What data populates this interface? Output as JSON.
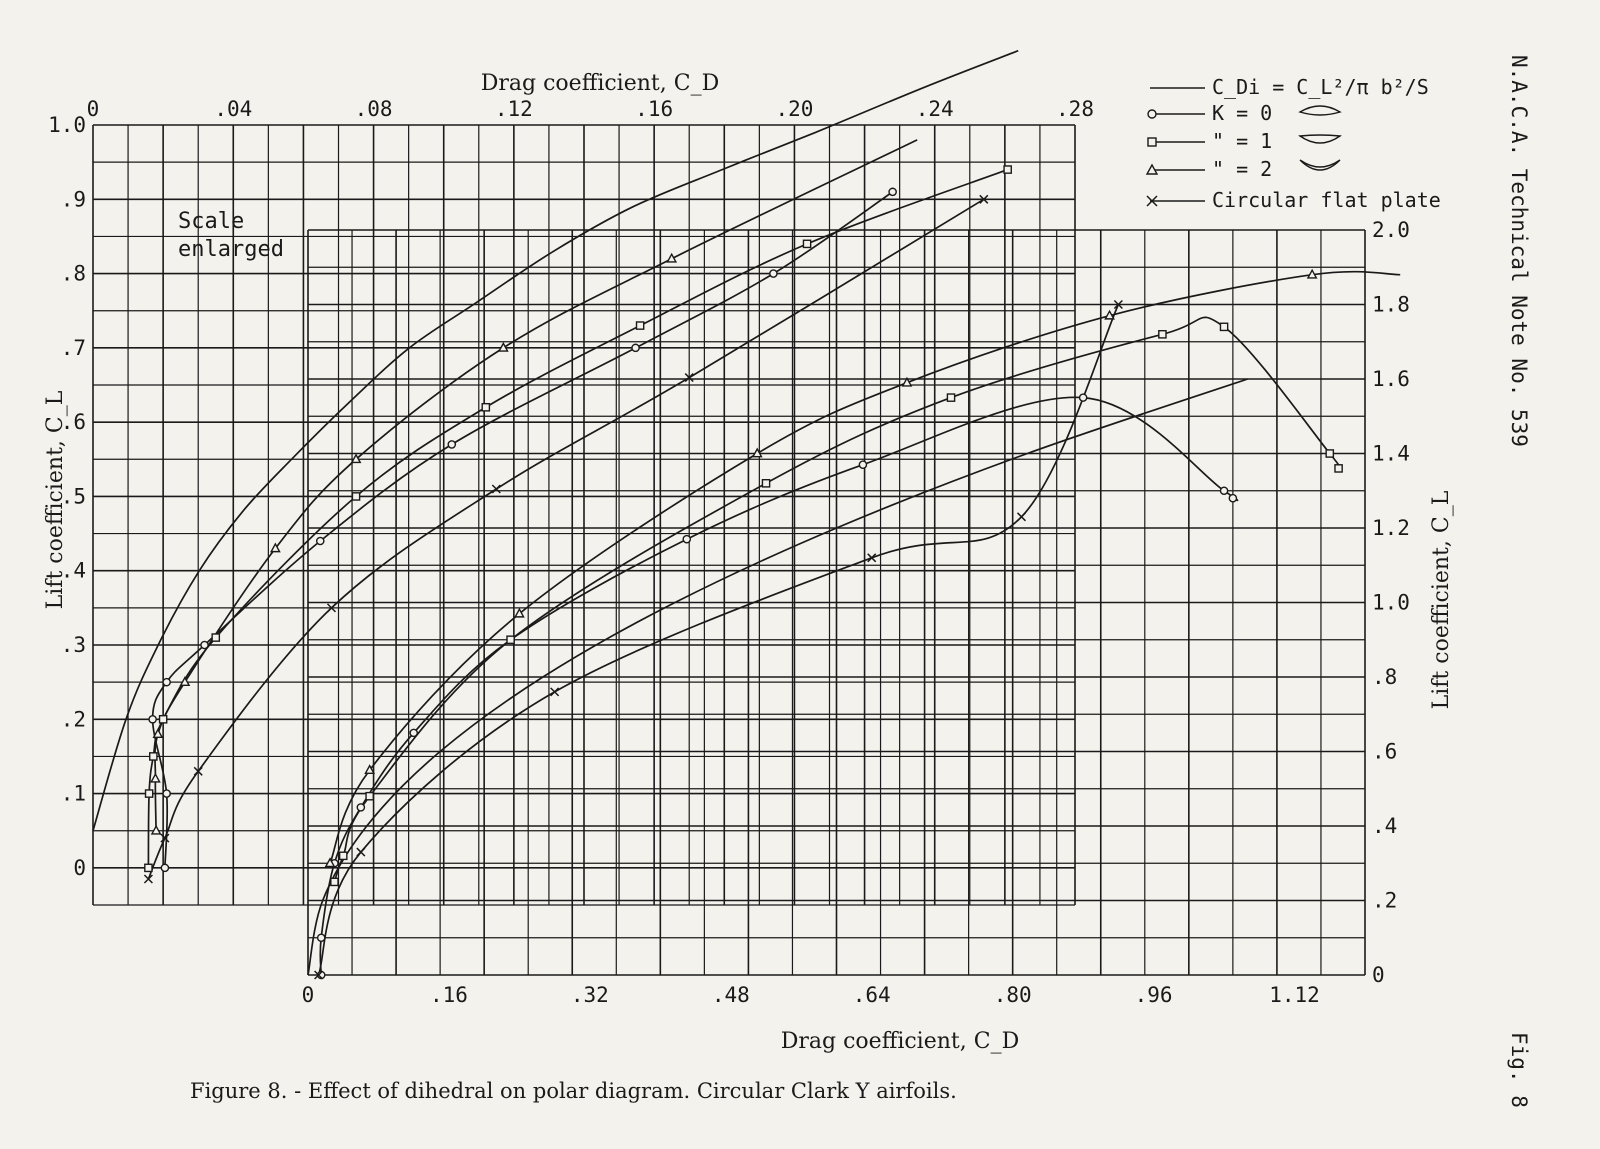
{
  "side_note": "N.A.C.A. Technical Note No. 539",
  "fig_label": "Fig. 8",
  "caption": "Figure 8. - Effect of dihedral on polar diagram.     Circular Clark Y airfoils.",
  "scale_note_line1": "Scale",
  "scale_note_line2": "enlarged",
  "legend": {
    "induced": "C_Di = C_L²/π b²/S",
    "k0": "K = 0",
    "k1": "\" = 1",
    "k2": "\" = 2",
    "flat": "Circular flat plate"
  },
  "colors": {
    "paper": "#f4f2ec",
    "ink": "#1a1a1a"
  },
  "chart_data": [
    {
      "id": "enlarged",
      "type": "line",
      "xlabel": "Drag coefficient, C_D",
      "ylabel": "Lift coefficient, C_L",
      "x_ticks": [
        "0",
        ".04",
        ".08",
        ".12",
        ".16",
        ".20",
        ".24",
        ".28"
      ],
      "y_ticks": [
        "0",
        ".1",
        ".2",
        ".3",
        ".4",
        ".5",
        ".6",
        ".7",
        ".8",
        ".9",
        "1.0"
      ],
      "xlim": [
        0,
        0.28
      ],
      "ylim": [
        -0.05,
        1.0
      ],
      "grid": true,
      "series": [
        {
          "name": "C_Di = C_L²/π b²/S",
          "marker": "none",
          "x": [
            0.0,
            0.0094,
            0.0186,
            0.0303,
            0.0427,
            0.0566,
            0.0738,
            0.0902,
            0.109,
            0.1313,
            0.154,
            0.1794,
            0.206,
            0.2366,
            0.2638
          ],
          "y": [
            0.05,
            0.2,
            0.3,
            0.4,
            0.48,
            0.55,
            0.63,
            0.7,
            0.76,
            0.83,
            0.89,
            0.94,
            0.99,
            1.05,
            1.1
          ]
        },
        {
          "name": "K = 0",
          "marker": "circle",
          "x": [
            0.0205,
            0.021,
            0.017,
            0.021,
            0.0318,
            0.0648,
            0.1023,
            0.1547,
            0.194,
            0.228
          ],
          "y": [
            0.0,
            0.1,
            0.2,
            0.25,
            0.3,
            0.44,
            0.57,
            0.7,
            0.8,
            0.91
          ]
        },
        {
          "name": "K = 1",
          "marker": "square",
          "x": [
            0.0158,
            0.016,
            0.0172,
            0.02,
            0.035,
            0.075,
            0.112,
            0.156,
            0.2036,
            0.2608
          ],
          "y": [
            0.0,
            0.1,
            0.15,
            0.2,
            0.31,
            0.5,
            0.62,
            0.73,
            0.84,
            0.94
          ]
        },
        {
          "name": "K = 2",
          "marker": "triangle",
          "x": [
            0.018,
            0.0178,
            0.0185,
            0.0262,
            0.052,
            0.075,
            0.117,
            0.165,
            0.235
          ],
          "y": [
            0.05,
            0.12,
            0.18,
            0.25,
            0.43,
            0.55,
            0.7,
            0.82,
            0.98
          ]
        },
        {
          "name": "Circular flat plate",
          "marker": "cross",
          "x": [
            0.0158,
            0.0205,
            0.03,
            0.068,
            0.115,
            0.17,
            0.254
          ],
          "y": [
            -0.015,
            0.04,
            0.13,
            0.35,
            0.51,
            0.66,
            0.9
          ]
        }
      ]
    },
    {
      "id": "full",
      "type": "line",
      "xlabel": "Drag coefficient, C_D",
      "ylabel": "Lift coefficient, C_L",
      "x_ticks": [
        "0",
        ".16",
        ".32",
        ".48",
        ".64",
        ".80",
        ".96",
        "1.12"
      ],
      "y_ticks": [
        "0",
        ".2",
        ".4",
        ".6",
        ".8",
        "1.0",
        "1.2",
        "1.4",
        "1.6",
        "1.8",
        "2.0"
      ],
      "xlim": [
        0,
        1.2
      ],
      "ylim": [
        0,
        2.0
      ],
      "grid": true,
      "series": [
        {
          "name": "C_Di = C_L²/π b²/S",
          "marker": "none",
          "x": [
            0.0,
            0.0167,
            0.0667,
            0.15,
            0.2667,
            0.4167,
            0.6,
            0.8167,
            1.0667
          ],
          "y": [
            0.0,
            0.2,
            0.4,
            0.6,
            0.8,
            1.0,
            1.2,
            1.4,
            1.6
          ]
        },
        {
          "name": "K = 0",
          "marker": "circle",
          "x": [
            0.015,
            0.015,
            0.03,
            0.06,
            0.12,
            0.23,
            0.43,
            0.63,
            0.88,
            1.04,
            1.05
          ],
          "y": [
            0.0,
            0.1,
            0.3,
            0.45,
            0.65,
            0.9,
            1.17,
            1.37,
            1.55,
            1.3,
            1.28
          ]
        },
        {
          "name": "K = 1",
          "marker": "square",
          "x": [
            0.03,
            0.04,
            0.07,
            0.23,
            0.52,
            0.73,
            0.97,
            1.04,
            1.16,
            1.17
          ],
          "y": [
            0.25,
            0.32,
            0.48,
            0.9,
            1.32,
            1.55,
            1.72,
            1.74,
            1.4,
            1.36
          ]
        },
        {
          "name": "K = 2",
          "marker": "triangle",
          "x": [
            0.025,
            0.07,
            0.24,
            0.51,
            0.68,
            0.91,
            1.14,
            1.24
          ],
          "y": [
            0.3,
            0.55,
            0.97,
            1.4,
            1.59,
            1.77,
            1.88,
            1.88
          ]
        },
        {
          "name": "Circular flat plate",
          "marker": "cross",
          "x": [
            0.012,
            0.06,
            0.28,
            0.64,
            0.81,
            0.92
          ],
          "y": [
            0.0,
            0.33,
            0.76,
            1.12,
            1.23,
            1.8
          ]
        }
      ]
    }
  ]
}
